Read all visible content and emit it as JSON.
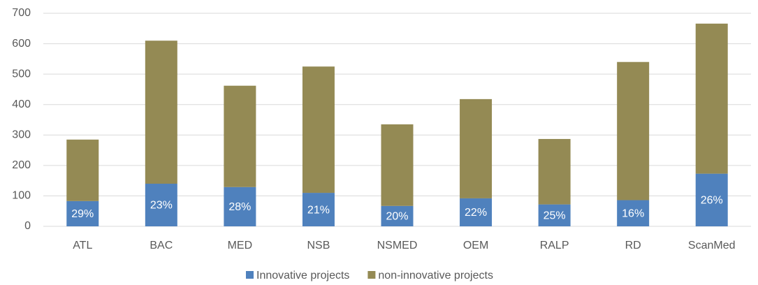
{
  "chart_data": {
    "type": "stacked_bar",
    "categories": [
      "ATL",
      "BAC",
      "MED",
      "NSB",
      "NSMED",
      "OEM",
      "RALP",
      "RD",
      "ScanMed"
    ],
    "series": [
      {
        "name": "Innovative projects",
        "color": "#4f81bd",
        "values": [
          83,
          140,
          129,
          110,
          67,
          92,
          72,
          86,
          173
        ],
        "share_labels": [
          "29%",
          "23%",
          "28%",
          "21%",
          "20%",
          "22%",
          "25%",
          "16%",
          "26%"
        ]
      },
      {
        "name": "non-innovative projects",
        "color": "#948a54",
        "values": [
          202,
          470,
          333,
          415,
          268,
          326,
          215,
          454,
          493
        ]
      }
    ],
    "ylim": [
      0,
      700
    ],
    "yticks": [
      0,
      100,
      200,
      300,
      400,
      500,
      600,
      700
    ],
    "grid": true,
    "legend": "bottom"
  }
}
